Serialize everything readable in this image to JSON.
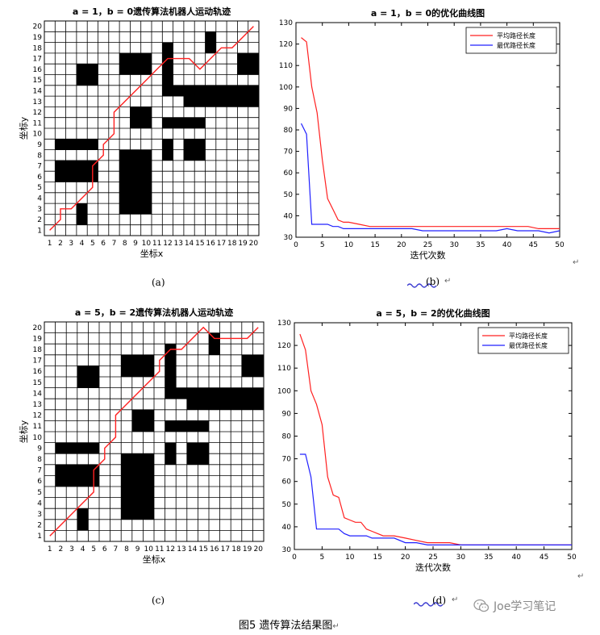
{
  "chart_data": [
    {
      "type": "grid-path",
      "title": "a = 1，b = 0遗传算法机器人运动轨迹",
      "xlabel": "坐标x",
      "ylabel": "坐标y",
      "xlim": [
        1,
        20
      ],
      "ylim": [
        1,
        20
      ],
      "ticks": [
        1,
        2,
        3,
        4,
        5,
        6,
        7,
        8,
        9,
        10,
        11,
        12,
        13,
        14,
        15,
        16,
        17,
        18,
        19,
        20
      ],
      "obstacle_cells": [
        [
          3,
          1
        ],
        [
          3,
          2
        ],
        [
          7,
          2
        ],
        [
          7,
          3
        ],
        [
          7,
          4
        ],
        [
          7,
          5
        ],
        [
          8,
          2
        ],
        [
          8,
          3
        ],
        [
          8,
          4
        ],
        [
          8,
          5
        ],
        [
          9,
          2
        ],
        [
          9,
          3
        ],
        [
          9,
          4
        ],
        [
          9,
          5
        ],
        [
          1,
          5
        ],
        [
          2,
          5
        ],
        [
          3,
          5
        ],
        [
          4,
          5
        ],
        [
          1,
          6
        ],
        [
          2,
          6
        ],
        [
          3,
          6
        ],
        [
          4,
          6
        ],
        [
          7,
          6
        ],
        [
          7,
          7
        ],
        [
          8,
          6
        ],
        [
          8,
          7
        ],
        [
          9,
          6
        ],
        [
          9,
          7
        ],
        [
          1,
          8
        ],
        [
          2,
          8
        ],
        [
          3,
          8
        ],
        [
          4,
          8
        ],
        [
          11,
          7
        ],
        [
          11,
          8
        ],
        [
          13,
          7
        ],
        [
          13,
          8
        ],
        [
          14,
          7
        ],
        [
          14,
          8
        ],
        [
          11,
          10
        ],
        [
          12,
          10
        ],
        [
          13,
          10
        ],
        [
          14,
          10
        ],
        [
          8,
          10
        ],
        [
          8,
          11
        ],
        [
          9,
          10
        ],
        [
          9,
          11
        ],
        [
          13,
          12
        ],
        [
          14,
          12
        ],
        [
          15,
          12
        ],
        [
          16,
          12
        ],
        [
          17,
          12
        ],
        [
          18,
          12
        ],
        [
          19,
          12
        ],
        [
          11,
          13
        ],
        [
          12,
          13
        ],
        [
          13,
          13
        ],
        [
          14,
          13
        ],
        [
          15,
          13
        ],
        [
          16,
          13
        ],
        [
          17,
          13
        ],
        [
          18,
          13
        ],
        [
          19,
          13
        ],
        [
          11,
          14
        ],
        [
          11,
          15
        ],
        [
          11,
          16
        ],
        [
          11,
          17
        ],
        [
          3,
          14
        ],
        [
          3,
          15
        ],
        [
          4,
          14
        ],
        [
          4,
          15
        ],
        [
          7,
          15
        ],
        [
          7,
          16
        ],
        [
          8,
          15
        ],
        [
          8,
          16
        ],
        [
          9,
          15
        ],
        [
          9,
          16
        ],
        [
          18,
          15
        ],
        [
          18,
          16
        ],
        [
          19,
          15
        ],
        [
          19,
          16
        ],
        [
          15,
          17
        ],
        [
          15,
          18
        ]
      ],
      "path": [
        [
          1,
          1
        ],
        [
          2,
          2
        ],
        [
          2,
          3
        ],
        [
          3,
          3
        ],
        [
          4,
          4
        ],
        [
          5,
          5
        ],
        [
          5,
          6
        ],
        [
          5,
          7
        ],
        [
          6,
          8
        ],
        [
          6,
          9
        ],
        [
          7,
          10
        ],
        [
          7,
          12
        ],
        [
          8,
          13
        ],
        [
          9,
          14
        ],
        [
          10,
          15
        ],
        [
          11,
          16
        ],
        [
          12,
          17
        ],
        [
          13,
          17
        ],
        [
          14,
          17
        ],
        [
          15,
          16
        ],
        [
          16,
          17
        ],
        [
          17,
          18
        ],
        [
          18,
          18
        ],
        [
          19,
          19
        ],
        [
          20,
          20
        ]
      ]
    },
    {
      "type": "line",
      "title": "a = 1，b = 0的优化曲线图",
      "xlabel": "迭代次数",
      "ylabel": "路径长度",
      "xlim": [
        0,
        50
      ],
      "ylim": [
        30,
        130
      ],
      "xticks": [
        0,
        5,
        10,
        15,
        20,
        25,
        30,
        35,
        40,
        45,
        50
      ],
      "yticks": [
        30,
        40,
        50,
        60,
        70,
        80,
        90,
        100,
        110,
        120,
        130
      ],
      "legend_position": "top-right",
      "series": [
        {
          "name": "平均路径长度",
          "color": "#ff2020",
          "x": [
            1,
            2,
            3,
            4,
            5,
            6,
            7,
            8,
            9,
            10,
            12,
            14,
            16,
            18,
            20,
            22,
            24,
            26,
            28,
            30,
            32,
            34,
            36,
            38,
            40,
            42,
            44,
            46,
            48,
            50
          ],
          "y": [
            123,
            121,
            100,
            88,
            66,
            48,
            43,
            38,
            37,
            37,
            36,
            35,
            35,
            35,
            35,
            35,
            35,
            35,
            35,
            35,
            35,
            35,
            35,
            35,
            35,
            35,
            35,
            34,
            34,
            34
          ]
        },
        {
          "name": "最优路径长度",
          "color": "#2020ff",
          "x": [
            1,
            2,
            3,
            4,
            5,
            6,
            7,
            8,
            9,
            10,
            12,
            14,
            16,
            18,
            20,
            22,
            24,
            26,
            28,
            30,
            32,
            34,
            36,
            38,
            40,
            42,
            44,
            46,
            48,
            50
          ],
          "y": [
            83,
            78,
            36,
            36,
            36,
            36,
            35,
            35,
            34,
            34,
            34,
            34,
            34,
            34,
            34,
            34,
            33,
            33,
            33,
            33,
            33,
            33,
            33,
            33,
            34,
            33,
            33,
            33,
            32,
            33
          ]
        }
      ]
    },
    {
      "type": "grid-path",
      "title": "a = 5，b = 2遗传算法机器人运动轨迹",
      "xlabel": "坐标x",
      "ylabel": "坐标y",
      "xlim": [
        1,
        20
      ],
      "ylim": [
        1,
        20
      ],
      "ticks": [
        1,
        2,
        3,
        4,
        5,
        6,
        7,
        8,
        9,
        10,
        11,
        12,
        13,
        14,
        15,
        16,
        17,
        18,
        19,
        20
      ],
      "obstacle_cells": [
        [
          3,
          1
        ],
        [
          3,
          2
        ],
        [
          7,
          2
        ],
        [
          7,
          3
        ],
        [
          7,
          4
        ],
        [
          7,
          5
        ],
        [
          8,
          2
        ],
        [
          8,
          3
        ],
        [
          8,
          4
        ],
        [
          8,
          5
        ],
        [
          9,
          2
        ],
        [
          9,
          3
        ],
        [
          9,
          4
        ],
        [
          9,
          5
        ],
        [
          1,
          5
        ],
        [
          2,
          5
        ],
        [
          3,
          5
        ],
        [
          4,
          5
        ],
        [
          1,
          6
        ],
        [
          2,
          6
        ],
        [
          3,
          6
        ],
        [
          4,
          6
        ],
        [
          7,
          6
        ],
        [
          7,
          7
        ],
        [
          8,
          6
        ],
        [
          8,
          7
        ],
        [
          9,
          6
        ],
        [
          9,
          7
        ],
        [
          1,
          8
        ],
        [
          2,
          8
        ],
        [
          3,
          8
        ],
        [
          4,
          8
        ],
        [
          11,
          7
        ],
        [
          11,
          8
        ],
        [
          13,
          7
        ],
        [
          13,
          8
        ],
        [
          14,
          7
        ],
        [
          14,
          8
        ],
        [
          11,
          10
        ],
        [
          12,
          10
        ],
        [
          13,
          10
        ],
        [
          14,
          10
        ],
        [
          8,
          10
        ],
        [
          8,
          11
        ],
        [
          9,
          10
        ],
        [
          9,
          11
        ],
        [
          13,
          12
        ],
        [
          14,
          12
        ],
        [
          15,
          12
        ],
        [
          16,
          12
        ],
        [
          17,
          12
        ],
        [
          18,
          12
        ],
        [
          19,
          12
        ],
        [
          11,
          13
        ],
        [
          12,
          13
        ],
        [
          13,
          13
        ],
        [
          14,
          13
        ],
        [
          15,
          13
        ],
        [
          16,
          13
        ],
        [
          17,
          13
        ],
        [
          18,
          13
        ],
        [
          19,
          13
        ],
        [
          11,
          14
        ],
        [
          11,
          15
        ],
        [
          11,
          16
        ],
        [
          11,
          17
        ],
        [
          3,
          14
        ],
        [
          3,
          15
        ],
        [
          4,
          14
        ],
        [
          4,
          15
        ],
        [
          7,
          15
        ],
        [
          7,
          16
        ],
        [
          8,
          15
        ],
        [
          8,
          16
        ],
        [
          9,
          15
        ],
        [
          9,
          16
        ],
        [
          18,
          15
        ],
        [
          18,
          16
        ],
        [
          19,
          15
        ],
        [
          19,
          16
        ],
        [
          15,
          17
        ],
        [
          15,
          18
        ]
      ],
      "path": [
        [
          1,
          1
        ],
        [
          2,
          2
        ],
        [
          3,
          3
        ],
        [
          4,
          4
        ],
        [
          5,
          5
        ],
        [
          5,
          6
        ],
        [
          5,
          7
        ],
        [
          6,
          8
        ],
        [
          6,
          9
        ],
        [
          7,
          10
        ],
        [
          7,
          12
        ],
        [
          8,
          13
        ],
        [
          9,
          14
        ],
        [
          10,
          15
        ],
        [
          11,
          16
        ],
        [
          11,
          17
        ],
        [
          12,
          18
        ],
        [
          13,
          18
        ],
        [
          14,
          19
        ],
        [
          15,
          20
        ],
        [
          16,
          19
        ],
        [
          17,
          19
        ],
        [
          18,
          19
        ],
        [
          19,
          19
        ],
        [
          20,
          20
        ]
      ]
    },
    {
      "type": "line",
      "title": "a = 5，b = 2的优化曲线图",
      "xlabel": "迭代次数",
      "ylabel": "路径长度",
      "xlim": [
        0,
        50
      ],
      "ylim": [
        30,
        130
      ],
      "xticks": [
        0,
        5,
        10,
        15,
        20,
        25,
        30,
        35,
        40,
        45,
        50
      ],
      "yticks": [
        30,
        40,
        50,
        60,
        70,
        80,
        90,
        100,
        110,
        120,
        130
      ],
      "legend_position": "top-right",
      "series": [
        {
          "name": "平均路径长度",
          "color": "#ff2020",
          "x": [
            1,
            2,
            3,
            4,
            5,
            6,
            7,
            8,
            9,
            10,
            11,
            12,
            13,
            14,
            15,
            16,
            18,
            20,
            22,
            24,
            26,
            28,
            30,
            32,
            34,
            36,
            38,
            40,
            42,
            44,
            46,
            48,
            50
          ],
          "y": [
            125,
            118,
            100,
            94,
            85,
            62,
            54,
            53,
            44,
            43,
            42,
            42,
            39,
            38,
            37,
            36,
            36,
            35,
            34,
            33,
            33,
            33,
            32,
            32,
            32,
            32,
            32,
            32,
            32,
            32,
            32,
            32,
            32
          ]
        },
        {
          "name": "最优路径长度",
          "color": "#2020ff",
          "x": [
            1,
            2,
            3,
            4,
            5,
            6,
            7,
            8,
            9,
            10,
            11,
            12,
            13,
            14,
            15,
            16,
            18,
            20,
            22,
            24,
            26,
            28,
            30,
            32,
            34,
            36,
            38,
            40,
            42,
            44,
            46,
            48,
            50
          ],
          "y": [
            72,
            72,
            62,
            39,
            39,
            39,
            39,
            39,
            37,
            36,
            36,
            36,
            36,
            35,
            35,
            35,
            35,
            33,
            33,
            32,
            32,
            32,
            32,
            32,
            32,
            32,
            32,
            32,
            32,
            32,
            32,
            32,
            32
          ]
        }
      ]
    }
  ],
  "subfigure_labels": [
    "(a)",
    "(b)",
    "(c)",
    "(d)"
  ],
  "paragraph_mark": "↵",
  "caption": "图5   遗传算法结果图",
  "watermark": "Joe学习笔记"
}
